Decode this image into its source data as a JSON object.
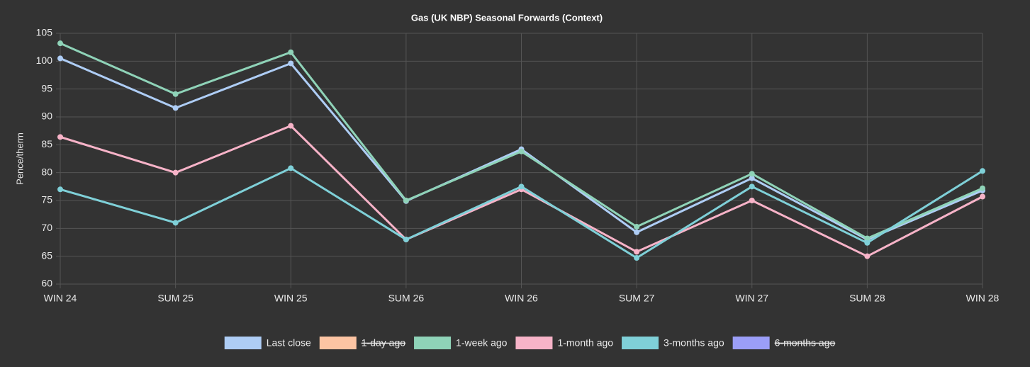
{
  "chart_data": {
    "type": "line",
    "title": "Gas (UK NBP) Seasonal Forwards (Context)",
    "y_label": "Pence/therm",
    "categories": [
      "WIN 24",
      "SUM 25",
      "WIN 25",
      "SUM 26",
      "WIN 26",
      "SUM 27",
      "WIN 27",
      "SUM 28",
      "WIN 28"
    ],
    "series": [
      {
        "name": "Last close",
        "color": "#aecdf5",
        "values": [
          100.5,
          91.6,
          99.6,
          74.9,
          84.2,
          69.3,
          79.0,
          68.0,
          76.8
        ]
      },
      {
        "name": "1-day ago",
        "color": "#fcc4a3",
        "hidden": true,
        "values": [
          null,
          null,
          null,
          null,
          null,
          null,
          null,
          null,
          null
        ]
      },
      {
        "name": "1-week ago",
        "color": "#8fd3b8",
        "values": [
          103.2,
          94.1,
          101.6,
          75.0,
          83.8,
          70.3,
          79.8,
          68.2,
          77.2
        ]
      },
      {
        "name": "1-month ago",
        "color": "#f7b3c8",
        "values": [
          86.4,
          80.0,
          88.4,
          68.0,
          77.0,
          65.8,
          75.0,
          65.0,
          75.7
        ]
      },
      {
        "name": "3-months ago",
        "color": "#7fd0d8",
        "values": [
          77.0,
          71.0,
          80.8,
          68.0,
          77.5,
          64.7,
          77.5,
          67.4,
          80.3
        ]
      },
      {
        "name": "6-months ago",
        "color": "#9b9ef8",
        "hidden": true,
        "values": [
          null,
          null,
          null,
          null,
          null,
          null,
          null,
          null,
          null
        ]
      }
    ],
    "ylim": [
      60,
      105
    ],
    "yticks": [
      60,
      65,
      70,
      75,
      80,
      85,
      90,
      95,
      100,
      105
    ],
    "grid": true,
    "legend": "bottom"
  }
}
